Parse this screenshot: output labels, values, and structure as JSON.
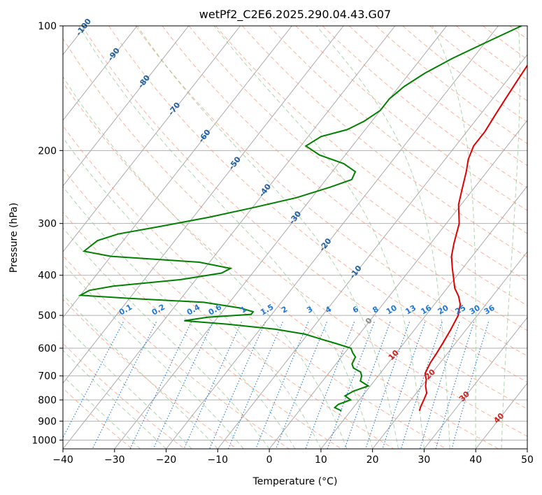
{
  "chart_data": {
    "type": "skew-t",
    "title": "wetPf2_C2E6.2025.290.04.43.G07",
    "xlabel": "Temperature (°C)",
    "ylabel": "Pressure (hPa)",
    "xlim": [
      -40,
      50
    ],
    "ylim": [
      1050,
      100
    ],
    "y_scale": "log",
    "grid": true,
    "x_ticks": [
      "−40",
      "−30",
      "−20",
      "−10",
      "0",
      "10",
      "20",
      "30",
      "40",
      "50"
    ],
    "y_ticks": [
      "100",
      "200",
      "300",
      "400",
      "500",
      "600",
      "700",
      "800",
      "900",
      "1000"
    ],
    "colors": {
      "temperature": "#e00000",
      "dewpoint": "#008000",
      "isotherm": "#aaaaaa",
      "dry_adiabat": "#ff9070",
      "moist_adiabat": "#80c080",
      "mixing_ratio": "#1f77d4",
      "isotherm_label": "#1f5fa0",
      "dry_adiabat_label": "#d02020",
      "freezing_label": "#888888"
    },
    "series": [
      {
        "name": "",
        "role": "temperature",
        "points": [
          [
            23.3,
            850
          ],
          [
            22.9,
            830
          ],
          [
            22.5,
            800
          ],
          [
            22.0,
            770
          ],
          [
            20.7,
            740
          ],
          [
            19.9,
            715
          ],
          [
            18.7,
            690
          ],
          [
            18.1,
            650
          ],
          [
            17.9,
            620
          ],
          [
            17.5,
            580
          ],
          [
            17.0,
            540
          ],
          [
            16.3,
            500
          ],
          [
            15.0,
            470
          ],
          [
            13.5,
            450
          ],
          [
            11.5,
            430
          ],
          [
            10.0,
            410
          ],
          [
            8.0,
            385
          ],
          [
            6.0,
            360
          ],
          [
            4.5,
            335
          ],
          [
            2.5,
            300
          ],
          [
            -0.5,
            270
          ],
          [
            -2.0,
            250
          ],
          [
            -4.0,
            225
          ],
          [
            -5.5,
            210
          ],
          [
            -6.5,
            195
          ],
          [
            -6.5,
            180
          ],
          [
            -7.0,
            165
          ],
          [
            -7.5,
            150
          ],
          [
            -8.0,
            135
          ],
          [
            -8.5,
            120
          ],
          [
            -9.0,
            110
          ],
          [
            -9.5,
            100
          ]
        ]
      },
      {
        "name": "",
        "role": "dewpoint",
        "points": [
          [
            8.2,
            850
          ],
          [
            6.4,
            835
          ],
          [
            6.6,
            820
          ],
          [
            8.3,
            800
          ],
          [
            6.6,
            782
          ],
          [
            7.5,
            762
          ],
          [
            9.6,
            740
          ],
          [
            7.3,
            720
          ],
          [
            6.8,
            700
          ],
          [
            6.0,
            685
          ],
          [
            4.0,
            670
          ],
          [
            3.1,
            655
          ],
          [
            2.7,
            630
          ],
          [
            1.5,
            615
          ],
          [
            0.5,
            600
          ],
          [
            -3.0,
            585
          ],
          [
            -6.8,
            570
          ],
          [
            -10.5,
            555
          ],
          [
            -17.0,
            540
          ],
          [
            -27.0,
            525
          ],
          [
            -36.0,
            515
          ],
          [
            -32.0,
            505
          ],
          [
            -24.0,
            497
          ],
          [
            -24.0,
            490
          ],
          [
            -27.0,
            480
          ],
          [
            -35.0,
            465
          ],
          [
            -50.0,
            455
          ],
          [
            -60.0,
            447
          ],
          [
            -59.0,
            435
          ],
          [
            -55.0,
            425
          ],
          [
            -43.0,
            410
          ],
          [
            -36.0,
            395
          ],
          [
            -35.0,
            385
          ],
          [
            -42.0,
            372
          ],
          [
            -60.0,
            360
          ],
          [
            -66.0,
            350
          ],
          [
            -65.0,
            330
          ],
          [
            -62.0,
            318
          ],
          [
            -55.0,
            305
          ],
          [
            -47.0,
            290
          ],
          [
            -40.0,
            275
          ],
          [
            -33.0,
            260
          ],
          [
            -28.0,
            245
          ],
          [
            -25.0,
            235
          ],
          [
            -25.5,
            225
          ],
          [
            -29.0,
            215
          ],
          [
            -35.0,
            205
          ],
          [
            -39.0,
            195
          ],
          [
            -37.5,
            185
          ],
          [
            -33.5,
            178
          ],
          [
            -31.5,
            170
          ],
          [
            -30.0,
            160
          ],
          [
            -30.0,
            150
          ],
          [
            -29.0,
            140
          ],
          [
            -27.0,
            130
          ],
          [
            -24.0,
            120
          ],
          [
            -20.0,
            110
          ],
          [
            -15.5,
            100
          ]
        ]
      }
    ],
    "isotherm_labels": [
      "-100",
      "-90",
      "-80",
      "-70",
      "-60",
      "-50",
      "-40",
      "-30",
      "-20",
      "-10",
      "0"
    ],
    "isotherm_label_values": [
      -100,
      -90,
      -80,
      -70,
      -60,
      -50,
      -40,
      -30,
      -20,
      -10,
      0
    ],
    "dry_adiabat_labels": [
      "10",
      "20",
      "30",
      "40"
    ],
    "dry_adiabat_label_values": [
      10,
      20,
      30,
      40
    ],
    "mixing_ratio_labels": [
      "0.1",
      "0.2",
      "0.4",
      "0.6",
      "1",
      "1.5",
      "2",
      "3",
      "4",
      "6",
      "8",
      "10",
      "13",
      "16",
      "20",
      "25",
      "30",
      "36"
    ],
    "mixing_ratio_values": [
      0.1,
      0.2,
      0.4,
      0.6,
      1,
      1.5,
      2,
      3,
      4,
      6,
      8,
      10,
      13,
      16,
      20,
      25,
      30,
      36
    ],
    "mixing_ratio_label_pressure": 500
  }
}
